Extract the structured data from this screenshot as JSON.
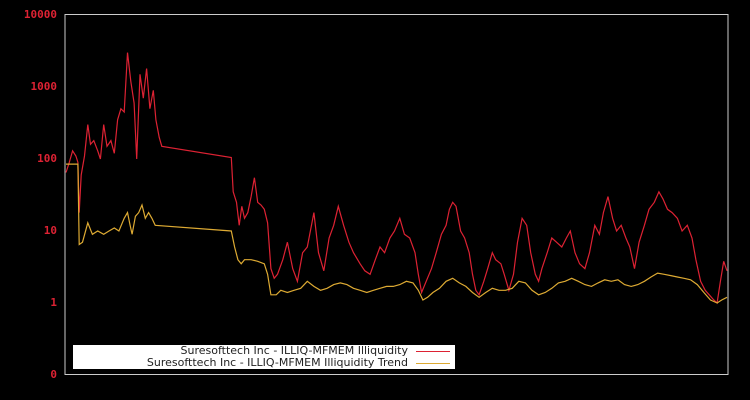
{
  "chart_data": {
    "type": "line",
    "title": "",
    "xlabel": "",
    "ylabel": "",
    "yscale": "log",
    "ylim": [
      0.1,
      10000
    ],
    "y_tick_labels": [
      "10000",
      "1000",
      "100",
      "10",
      "1",
      "0"
    ],
    "y_tick_values": [
      10000,
      1000,
      100,
      10,
      1,
      0.1
    ],
    "x_tick_labels": [],
    "grid": false,
    "legend_position": "lower left",
    "background": "#000000",
    "axis_color": "#cccccc",
    "tick_label_color": "#dd2233",
    "series": [
      {
        "name": "Suresofttech Inc - ILLIQ-MFMEM Illiquidity",
        "color": "#dd2233",
        "points": [
          [
            0.0,
            65
          ],
          [
            0.005,
            90
          ],
          [
            0.01,
            130
          ],
          [
            0.015,
            110
          ],
          [
            0.018,
            90
          ],
          [
            0.02,
            18
          ],
          [
            0.023,
            60
          ],
          [
            0.028,
            110
          ],
          [
            0.033,
            300
          ],
          [
            0.037,
            160
          ],
          [
            0.042,
            180
          ],
          [
            0.048,
            130
          ],
          [
            0.052,
            100
          ],
          [
            0.057,
            300
          ],
          [
            0.062,
            150
          ],
          [
            0.068,
            180
          ],
          [
            0.073,
            120
          ],
          [
            0.078,
            350
          ],
          [
            0.083,
            500
          ],
          [
            0.088,
            450
          ],
          [
            0.093,
            3000
          ],
          [
            0.098,
            1200
          ],
          [
            0.103,
            600
          ],
          [
            0.107,
            100
          ],
          [
            0.112,
            1500
          ],
          [
            0.117,
            700
          ],
          [
            0.122,
            1800
          ],
          [
            0.127,
            500
          ],
          [
            0.132,
            900
          ],
          [
            0.136,
            350
          ],
          [
            0.141,
            200
          ],
          [
            0.145,
            150
          ],
          [
            0.25,
            105
          ],
          [
            0.253,
            35
          ],
          [
            0.258,
            25
          ],
          [
            0.262,
            12
          ],
          [
            0.266,
            22
          ],
          [
            0.27,
            15
          ],
          [
            0.275,
            18
          ],
          [
            0.28,
            30
          ],
          [
            0.285,
            55
          ],
          [
            0.29,
            25
          ],
          [
            0.295,
            23
          ],
          [
            0.3,
            20
          ],
          [
            0.305,
            13
          ],
          [
            0.31,
            3
          ],
          [
            0.315,
            2.2
          ],
          [
            0.32,
            2.5
          ],
          [
            0.328,
            4
          ],
          [
            0.335,
            7
          ],
          [
            0.343,
            3
          ],
          [
            0.35,
            2
          ],
          [
            0.358,
            5
          ],
          [
            0.365,
            6
          ],
          [
            0.375,
            18
          ],
          [
            0.382,
            5
          ],
          [
            0.39,
            2.8
          ],
          [
            0.398,
            8
          ],
          [
            0.405,
            12
          ],
          [
            0.412,
            22
          ],
          [
            0.42,
            12
          ],
          [
            0.428,
            7
          ],
          [
            0.435,
            5
          ],
          [
            0.445,
            3.5
          ],
          [
            0.452,
            2.8
          ],
          [
            0.46,
            2.5
          ],
          [
            0.468,
            4
          ],
          [
            0.475,
            6
          ],
          [
            0.482,
            5
          ],
          [
            0.49,
            8
          ],
          [
            0.497,
            10
          ],
          [
            0.505,
            15
          ],
          [
            0.512,
            9
          ],
          [
            0.52,
            8
          ],
          [
            0.528,
            5
          ],
          [
            0.533,
            2.5
          ],
          [
            0.538,
            1.4
          ],
          [
            0.545,
            2
          ],
          [
            0.553,
            3
          ],
          [
            0.56,
            5
          ],
          [
            0.568,
            9
          ],
          [
            0.575,
            12
          ],
          [
            0.58,
            20
          ],
          [
            0.585,
            25
          ],
          [
            0.59,
            22
          ],
          [
            0.597,
            10
          ],
          [
            0.603,
            8
          ],
          [
            0.61,
            5
          ],
          [
            0.615,
            2.5
          ],
          [
            0.62,
            1.5
          ],
          [
            0.625,
            1.3
          ],
          [
            0.632,
            2
          ],
          [
            0.638,
            3
          ],
          [
            0.645,
            5
          ],
          [
            0.65,
            4
          ],
          [
            0.658,
            3.5
          ],
          [
            0.663,
            2.5
          ],
          [
            0.67,
            1.5
          ],
          [
            0.677,
            2.5
          ],
          [
            0.683,
            7
          ],
          [
            0.69,
            15
          ],
          [
            0.697,
            12
          ],
          [
            0.703,
            5
          ],
          [
            0.71,
            2.5
          ],
          [
            0.715,
            2
          ],
          [
            0.72,
            3
          ],
          [
            0.728,
            5
          ],
          [
            0.735,
            8
          ],
          [
            0.742,
            7
          ],
          [
            0.75,
            6
          ],
          [
            0.757,
            8
          ],
          [
            0.763,
            10
          ],
          [
            0.77,
            5
          ],
          [
            0.777,
            3.5
          ],
          [
            0.785,
            3
          ],
          [
            0.792,
            5
          ],
          [
            0.8,
            12
          ],
          [
            0.807,
            9
          ],
          [
            0.813,
            18
          ],
          [
            0.82,
            30
          ],
          [
            0.827,
            15
          ],
          [
            0.833,
            10
          ],
          [
            0.84,
            12
          ],
          [
            0.847,
            8
          ],
          [
            0.853,
            6
          ],
          [
            0.86,
            3
          ],
          [
            0.867,
            7
          ],
          [
            0.875,
            12
          ],
          [
            0.882,
            20
          ],
          [
            0.89,
            25
          ],
          [
            0.897,
            35
          ],
          [
            0.903,
            28
          ],
          [
            0.91,
            20
          ],
          [
            0.917,
            18
          ],
          [
            0.925,
            15
          ],
          [
            0.932,
            10
          ],
          [
            0.94,
            12
          ],
          [
            0.947,
            8
          ],
          [
            0.953,
            4
          ],
          [
            0.96,
            2
          ],
          [
            0.967,
            1.5
          ],
          [
            0.973,
            1.3
          ],
          [
            0.98,
            1.1
          ],
          [
            0.985,
            1.0
          ],
          [
            0.99,
            2
          ],
          [
            0.995,
            3.8
          ],
          [
            1.0,
            2.8
          ]
        ]
      },
      {
        "name": "Suresofttech Inc - ILLIQ-MFMEM Illiquidity Trend",
        "color": "#ddaa33",
        "points": [
          [
            0.0,
            85
          ],
          [
            0.018,
            85
          ],
          [
            0.02,
            6.5
          ],
          [
            0.025,
            7
          ],
          [
            0.033,
            13
          ],
          [
            0.04,
            9
          ],
          [
            0.048,
            10
          ],
          [
            0.057,
            9
          ],
          [
            0.065,
            10
          ],
          [
            0.073,
            11
          ],
          [
            0.08,
            10
          ],
          [
            0.088,
            15
          ],
          [
            0.093,
            18
          ],
          [
            0.097,
            12
          ],
          [
            0.1,
            9
          ],
          [
            0.105,
            16
          ],
          [
            0.11,
            18
          ],
          [
            0.115,
            23
          ],
          [
            0.12,
            15
          ],
          [
            0.125,
            18
          ],
          [
            0.13,
            15
          ],
          [
            0.135,
            12
          ],
          [
            0.25,
            10
          ],
          [
            0.255,
            6
          ],
          [
            0.26,
            4
          ],
          [
            0.265,
            3.5
          ],
          [
            0.27,
            4
          ],
          [
            0.28,
            4
          ],
          [
            0.29,
            3.8
          ],
          [
            0.3,
            3.5
          ],
          [
            0.305,
            2.5
          ],
          [
            0.31,
            1.3
          ],
          [
            0.318,
            1.3
          ],
          [
            0.325,
            1.5
          ],
          [
            0.335,
            1.4
          ],
          [
            0.345,
            1.5
          ],
          [
            0.355,
            1.6
          ],
          [
            0.365,
            2.0
          ],
          [
            0.375,
            1.7
          ],
          [
            0.385,
            1.5
          ],
          [
            0.395,
            1.6
          ],
          [
            0.405,
            1.8
          ],
          [
            0.415,
            1.9
          ],
          [
            0.425,
            1.8
          ],
          [
            0.435,
            1.6
          ],
          [
            0.445,
            1.5
          ],
          [
            0.455,
            1.4
          ],
          [
            0.465,
            1.5
          ],
          [
            0.475,
            1.6
          ],
          [
            0.485,
            1.7
          ],
          [
            0.495,
            1.7
          ],
          [
            0.505,
            1.8
          ],
          [
            0.515,
            2.0
          ],
          [
            0.525,
            1.9
          ],
          [
            0.533,
            1.5
          ],
          [
            0.54,
            1.1
          ],
          [
            0.547,
            1.2
          ],
          [
            0.555,
            1.4
          ],
          [
            0.565,
            1.6
          ],
          [
            0.575,
            2.0
          ],
          [
            0.585,
            2.2
          ],
          [
            0.595,
            1.9
          ],
          [
            0.605,
            1.7
          ],
          [
            0.615,
            1.4
          ],
          [
            0.625,
            1.2
          ],
          [
            0.635,
            1.4
          ],
          [
            0.645,
            1.6
          ],
          [
            0.655,
            1.5
          ],
          [
            0.665,
            1.5
          ],
          [
            0.675,
            1.6
          ],
          [
            0.685,
            2.0
          ],
          [
            0.695,
            1.9
          ],
          [
            0.705,
            1.5
          ],
          [
            0.715,
            1.3
          ],
          [
            0.725,
            1.4
          ],
          [
            0.735,
            1.6
          ],
          [
            0.745,
            1.9
          ],
          [
            0.755,
            2.0
          ],
          [
            0.765,
            2.2
          ],
          [
            0.775,
            2.0
          ],
          [
            0.785,
            1.8
          ],
          [
            0.795,
            1.7
          ],
          [
            0.805,
            1.9
          ],
          [
            0.815,
            2.1
          ],
          [
            0.825,
            2.0
          ],
          [
            0.835,
            2.1
          ],
          [
            0.845,
            1.8
          ],
          [
            0.855,
            1.7
          ],
          [
            0.865,
            1.8
          ],
          [
            0.875,
            2.0
          ],
          [
            0.885,
            2.3
          ],
          [
            0.895,
            2.6
          ],
          [
            0.905,
            2.5
          ],
          [
            0.915,
            2.4
          ],
          [
            0.925,
            2.3
          ],
          [
            0.935,
            2.2
          ],
          [
            0.945,
            2.1
          ],
          [
            0.955,
            1.8
          ],
          [
            0.965,
            1.4
          ],
          [
            0.975,
            1.1
          ],
          [
            0.985,
            1.0
          ],
          [
            0.992,
            1.1
          ],
          [
            1.0,
            1.2
          ]
        ]
      }
    ]
  },
  "legend": {
    "items": [
      {
        "label": "Suresofttech Inc - ILLIQ-MFMEM Illiquidity",
        "color": "#dd2233"
      },
      {
        "label": "Suresofttech Inc - ILLIQ-MFMEM Illiquidity Trend",
        "color": "#ddaa33"
      }
    ]
  }
}
